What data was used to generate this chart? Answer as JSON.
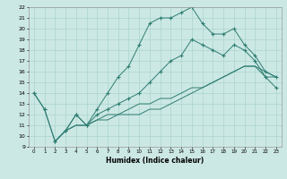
{
  "title": "",
  "xlabel": "Humidex (Indice chaleur)",
  "ylabel": "",
  "bg_color": "#cce8e4",
  "grid_color": "#aad4ce",
  "line_color": "#2e7d72",
  "xlim": [
    -0.5,
    23.5
  ],
  "ylim": [
    9,
    22
  ],
  "xticks": [
    0,
    1,
    2,
    3,
    4,
    5,
    6,
    7,
    8,
    9,
    10,
    11,
    12,
    13,
    14,
    15,
    16,
    17,
    18,
    19,
    20,
    21,
    22,
    23
  ],
  "yticks": [
    9,
    10,
    11,
    12,
    13,
    14,
    15,
    16,
    17,
    18,
    19,
    20,
    21,
    22
  ],
  "line1_x": [
    0,
    1,
    2,
    3,
    4,
    5,
    6,
    7,
    8,
    9,
    10,
    11,
    12,
    13,
    14,
    15,
    16,
    17,
    18,
    19,
    20,
    21,
    22,
    23
  ],
  "line1_y": [
    14.0,
    12.5,
    9.5,
    10.5,
    12.0,
    11.0,
    12.5,
    14.0,
    15.5,
    16.5,
    18.5,
    20.5,
    21.0,
    21.0,
    21.5,
    22.0,
    20.5,
    19.5,
    19.5,
    20.0,
    18.5,
    17.5,
    16.0,
    15.5
  ],
  "line2_x": [
    0,
    1,
    2,
    3,
    4,
    5,
    6,
    7,
    8,
    9,
    10,
    11,
    12,
    13,
    14,
    15,
    16,
    17,
    18,
    19,
    20,
    21,
    22,
    23
  ],
  "line2_y": [
    14.0,
    12.5,
    9.5,
    10.5,
    12.0,
    11.0,
    12.0,
    12.5,
    13.0,
    13.5,
    14.0,
    15.0,
    16.0,
    17.0,
    17.5,
    19.0,
    18.5,
    18.0,
    17.5,
    18.5,
    18.0,
    17.0,
    15.5,
    14.5
  ],
  "line3_x": [
    2,
    3,
    4,
    5,
    6,
    7,
    8,
    9,
    10,
    11,
    12,
    13,
    14,
    15,
    16,
    17,
    18,
    19,
    20,
    21,
    22,
    23
  ],
  "line3_y": [
    9.5,
    10.5,
    11.0,
    11.0,
    11.5,
    12.0,
    12.0,
    12.5,
    13.0,
    13.0,
    13.5,
    13.5,
    14.0,
    14.5,
    14.5,
    15.0,
    15.5,
    16.0,
    16.5,
    16.5,
    16.0,
    15.5
  ],
  "line4_x": [
    2,
    3,
    4,
    5,
    6,
    7,
    8,
    9,
    10,
    11,
    12,
    13,
    14,
    15,
    16,
    17,
    18,
    19,
    20,
    21,
    22,
    23
  ],
  "line4_y": [
    9.5,
    10.5,
    11.0,
    11.0,
    11.5,
    11.5,
    12.0,
    12.0,
    12.0,
    12.5,
    12.5,
    13.0,
    13.5,
    14.0,
    14.5,
    15.0,
    15.5,
    16.0,
    16.5,
    16.5,
    15.5,
    15.5
  ]
}
